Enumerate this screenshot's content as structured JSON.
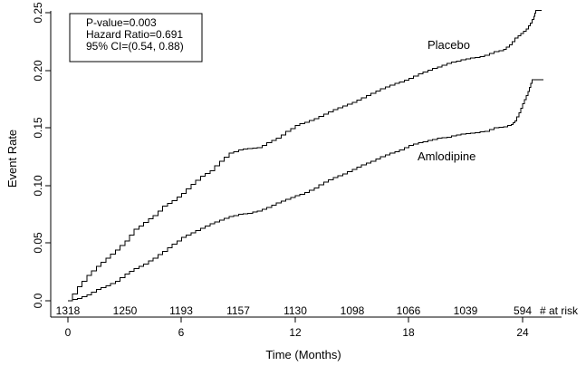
{
  "chart_data": {
    "type": "line",
    "subtype": "kaplan-meier-step",
    "title": "",
    "xlabel": "Time (Months)",
    "ylabel": "Event Rate",
    "xlim": [
      0,
      25.2
    ],
    "ylim": [
      0,
      0.25
    ],
    "grid": false,
    "x_ticks": [
      "0",
      "6",
      "12",
      "18",
      "24"
    ],
    "x_tick_values": [
      0,
      6,
      12,
      18,
      24
    ],
    "y_ticks": [
      "0.0",
      "0.05",
      "0.10",
      "0.15",
      "0.20",
      "0.25"
    ],
    "y_tick_values": [
      0,
      0.05,
      0.1,
      0.15,
      0.2,
      0.25
    ],
    "annotation_box": {
      "p_value_line": "P-value=0.003",
      "hazard_ratio_line": "Hazard Ratio=0.691",
      "ci_line": "95% CI=(0.54, 0.88)"
    },
    "series": [
      {
        "name": "Placebo",
        "points": [
          [
            0,
            0
          ],
          [
            0.5,
            0.012
          ],
          [
            1,
            0.022
          ],
          [
            1.5,
            0.03
          ],
          [
            2,
            0.037
          ],
          [
            2.5,
            0.044
          ],
          [
            3,
            0.052
          ],
          [
            3.5,
            0.062
          ],
          [
            4,
            0.068
          ],
          [
            4.5,
            0.074
          ],
          [
            5,
            0.082
          ],
          [
            5.5,
            0.087
          ],
          [
            6,
            0.093
          ],
          [
            6.5,
            0.101
          ],
          [
            7,
            0.108
          ],
          [
            7.5,
            0.113
          ],
          [
            8,
            0.121
          ],
          [
            8.5,
            0.128
          ],
          [
            9,
            0.131
          ],
          [
            9.5,
            0.132
          ],
          [
            10,
            0.133
          ],
          [
            10.5,
            0.137
          ],
          [
            11,
            0.141
          ],
          [
            11.5,
            0.147
          ],
          [
            12,
            0.152
          ],
          [
            12.5,
            0.155
          ],
          [
            13,
            0.158
          ],
          [
            13.5,
            0.162
          ],
          [
            14,
            0.166
          ],
          [
            14.5,
            0.169
          ],
          [
            15,
            0.172
          ],
          [
            15.5,
            0.176
          ],
          [
            16,
            0.18
          ],
          [
            16.5,
            0.184
          ],
          [
            17,
            0.187
          ],
          [
            17.5,
            0.19
          ],
          [
            18,
            0.193
          ],
          [
            18.5,
            0.197
          ],
          [
            19,
            0.2
          ],
          [
            19.5,
            0.203
          ],
          [
            20,
            0.206
          ],
          [
            20.5,
            0.208
          ],
          [
            21,
            0.21
          ],
          [
            21.5,
            0.211
          ],
          [
            22,
            0.213
          ],
          [
            22.5,
            0.216
          ],
          [
            23,
            0.218
          ],
          [
            23.3,
            0.222
          ],
          [
            23.6,
            0.228
          ],
          [
            23.9,
            0.232
          ],
          [
            24.2,
            0.236
          ],
          [
            24.4,
            0.241
          ],
          [
            24.6,
            0.247
          ],
          [
            24.7,
            0.252
          ],
          [
            25,
            0.252
          ]
        ]
      },
      {
        "name": "Amlodipine",
        "points": [
          [
            0,
            0
          ],
          [
            0.5,
            0.002
          ],
          [
            1,
            0.005
          ],
          [
            1.5,
            0.01
          ],
          [
            2,
            0.013
          ],
          [
            2.5,
            0.017
          ],
          [
            3,
            0.023
          ],
          [
            3.5,
            0.028
          ],
          [
            4,
            0.032
          ],
          [
            4.5,
            0.037
          ],
          [
            5,
            0.043
          ],
          [
            5.5,
            0.049
          ],
          [
            6,
            0.055
          ],
          [
            6.5,
            0.059
          ],
          [
            7,
            0.063
          ],
          [
            7.5,
            0.067
          ],
          [
            8,
            0.07
          ],
          [
            8.5,
            0.073
          ],
          [
            9,
            0.075
          ],
          [
            9.5,
            0.076
          ],
          [
            10,
            0.078
          ],
          [
            10.5,
            0.081
          ],
          [
            11,
            0.085
          ],
          [
            11.5,
            0.088
          ],
          [
            12,
            0.091
          ],
          [
            12.5,
            0.094
          ],
          [
            13,
            0.098
          ],
          [
            13.5,
            0.103
          ],
          [
            14,
            0.107
          ],
          [
            14.5,
            0.11
          ],
          [
            15,
            0.114
          ],
          [
            15.5,
            0.118
          ],
          [
            16,
            0.121
          ],
          [
            16.5,
            0.125
          ],
          [
            17,
            0.128
          ],
          [
            17.5,
            0.131
          ],
          [
            18,
            0.135
          ],
          [
            18.5,
            0.137
          ],
          [
            19,
            0.139
          ],
          [
            19.5,
            0.141
          ],
          [
            20,
            0.142
          ],
          [
            20.5,
            0.144
          ],
          [
            21,
            0.145
          ],
          [
            21.5,
            0.146
          ],
          [
            22,
            0.147
          ],
          [
            22.5,
            0.15
          ],
          [
            23,
            0.151
          ],
          [
            23.4,
            0.153
          ],
          [
            23.6,
            0.156
          ],
          [
            23.8,
            0.163
          ],
          [
            24,
            0.171
          ],
          [
            24.2,
            0.178
          ],
          [
            24.35,
            0.185
          ],
          [
            24.5,
            0.192
          ],
          [
            25.1,
            0.192
          ]
        ]
      }
    ],
    "risk_table": {
      "label": "# at risk",
      "months": [
        0,
        3,
        6,
        9,
        12,
        15,
        18,
        21,
        24
      ],
      "counts": [
        "1318",
        "1250",
        "1193",
        "1157",
        "1130",
        "1098",
        "1066",
        "1039",
        "594"
      ]
    },
    "legend_position": "labels-on-curves",
    "colors": {
      "curve": "#000000",
      "background": "#ffffff",
      "text": "#000000"
    }
  }
}
